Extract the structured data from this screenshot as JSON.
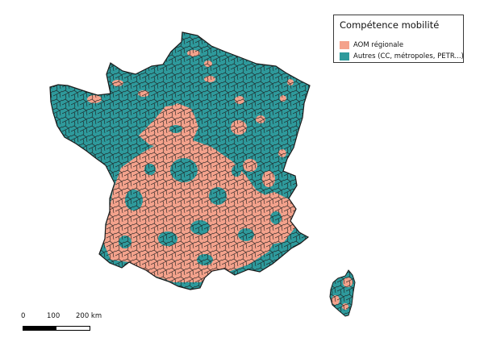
{
  "legend": {
    "title": "Compétence mobilité",
    "items": [
      {
        "label": "AOM régionale",
        "color": "#f4a28c"
      },
      {
        "label": "Autres (CC, métropoles, PETR...)",
        "color": "#2e9a9c"
      }
    ]
  },
  "scale_bar": {
    "labels": [
      "0",
      "100",
      "200 km"
    ]
  },
  "colors": {
    "aom_regionale": "#f4a28c",
    "autres": "#2e9a9c",
    "borders": "#1a1a1a"
  }
}
